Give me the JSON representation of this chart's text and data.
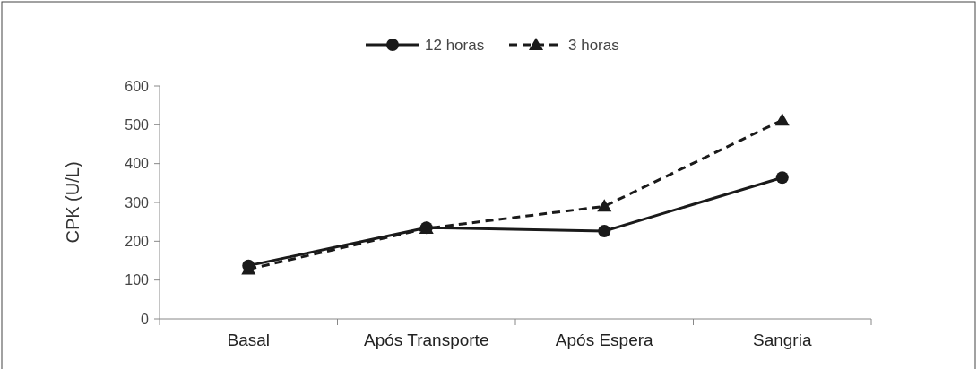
{
  "chart_data": {
    "type": "line",
    "ylabel": "CPK (U/L)",
    "categories": [
      "Basal",
      "Após Transporte",
      "Após Espera",
      "Sangria"
    ],
    "ylim": [
      0,
      600
    ],
    "yticks": [
      0,
      100,
      200,
      300,
      400,
      500,
      600
    ],
    "legend": "top",
    "grid": false,
    "series": [
      {
        "name": "12 horas",
        "color": "#1a1a1a",
        "values": [
          137,
          235,
          226,
          364
        ],
        "marker": "circle",
        "line_style": "solid"
      },
      {
        "name": "3 horas",
        "color": "#1a1a1a",
        "values": [
          128,
          233,
          290,
          512
        ],
        "marker": "triangle",
        "line_style": "dashed"
      }
    ]
  }
}
